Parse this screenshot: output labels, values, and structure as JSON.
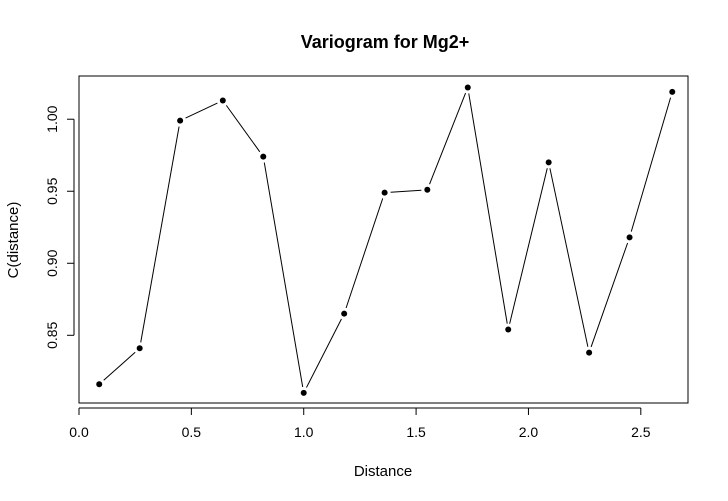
{
  "chart_data": {
    "type": "line",
    "title": "Variogram for Mg2+",
    "xlabel": "Distance",
    "ylabel": "C(distance)",
    "xlim": [
      0.0,
      2.71
    ],
    "ylim": [
      0.803,
      1.03
    ],
    "x_ticks": [
      0.0,
      0.5,
      1.0,
      1.5,
      2.0,
      2.5
    ],
    "x_tick_labels": [
      "0.0",
      "0.5",
      "1.0",
      "1.5",
      "2.0",
      "2.5"
    ],
    "y_ticks": [
      0.85,
      0.9,
      0.95,
      1.0
    ],
    "y_tick_labels": [
      "0.85",
      "0.90",
      "0.95",
      "1.00"
    ],
    "grid": false,
    "legend": "none",
    "series": [
      {
        "x": [
          0.09,
          0.27,
          0.45,
          0.64,
          0.82,
          1.0,
          1.18,
          1.36,
          1.55,
          1.73,
          1.91,
          2.09,
          2.27,
          2.45,
          2.64
        ],
        "y": [
          0.816,
          0.841,
          0.999,
          1.013,
          0.974,
          0.81,
          0.865,
          0.949,
          0.951,
          1.022,
          0.854,
          0.97,
          0.838,
          0.918,
          1.019
        ]
      }
    ],
    "line_color": "#000000",
    "point_color": "#000000"
  }
}
